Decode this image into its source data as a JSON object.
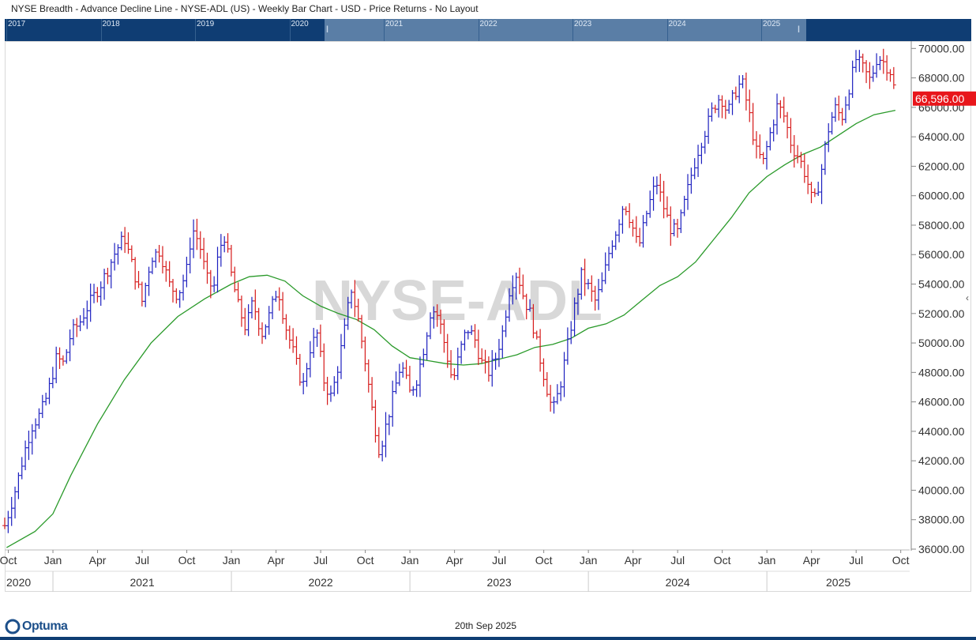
{
  "header": {
    "title": "NYSE Breadth - Advance Decline Line - NYSE-ADL (US) - Weekly Bar Chart - USD - Price Returns - No Layout"
  },
  "navigator": {
    "years": [
      "2017",
      "2018",
      "2019",
      "2020",
      "2021",
      "2022",
      "2023",
      "2024",
      "2025"
    ]
  },
  "watermark": "NYSE-ADL",
  "footer": {
    "date": "20th Sep 2025",
    "logo": "Optuma"
  },
  "colors": {
    "up": "#1c1fbf",
    "down": "#d61a1a",
    "ma": "#2a9a2a",
    "price_label": "#e8161b",
    "navigator": "#0f3d73"
  },
  "icons": {
    "collapse": "chevron-left-icon",
    "logo": "optuma-logo-icon"
  },
  "chart_data": {
    "type": "bar",
    "bar_style": "weekly OHLC bars",
    "ylim": [
      36000,
      70500
    ],
    "y_ticks": [
      36000,
      38000,
      40000,
      42000,
      44000,
      46000,
      48000,
      50000,
      52000,
      54000,
      56000,
      58000,
      60000,
      62000,
      64000,
      66000,
      68000,
      70000
    ],
    "y_tick_labels": [
      "36000.00",
      "38000.00",
      "40000.00",
      "42000.00",
      "44000.00",
      "46000.00",
      "48000.00",
      "50000.00",
      "52000.00",
      "54000.00",
      "56000.00",
      "58000.00",
      "60000.00",
      "62000.00",
      "64000.00",
      "66000.00",
      "68000.00",
      "70000.00"
    ],
    "last_price_label": "66,596.00",
    "last_price": 66596,
    "x_months": [
      {
        "label": "Oct",
        "t": 2020.75
      },
      {
        "label": "Jan",
        "t": 2021.0
      },
      {
        "label": "Apr",
        "t": 2021.25
      },
      {
        "label": "Jul",
        "t": 2021.5
      },
      {
        "label": "Oct",
        "t": 2021.75
      },
      {
        "label": "Jan",
        "t": 2022.0
      },
      {
        "label": "Apr",
        "t": 2022.25
      },
      {
        "label": "Jul",
        "t": 2022.5
      },
      {
        "label": "Oct",
        "t": 2022.75
      },
      {
        "label": "Jan",
        "t": 2023.0
      },
      {
        "label": "Apr",
        "t": 2023.25
      },
      {
        "label": "Jul",
        "t": 2023.5
      },
      {
        "label": "Oct",
        "t": 2023.75
      },
      {
        "label": "Jan",
        "t": 2024.0
      },
      {
        "label": "Apr",
        "t": 2024.25
      },
      {
        "label": "Jul",
        "t": 2024.5
      },
      {
        "label": "Oct",
        "t": 2024.75
      },
      {
        "label": "Jan",
        "t": 2025.0
      },
      {
        "label": "Apr",
        "t": 2025.25
      },
      {
        "label": "Jul",
        "t": 2025.5
      },
      {
        "label": "Oct",
        "t": 2025.75
      }
    ],
    "x_years": [
      "2020",
      "2021",
      "2022",
      "2023",
      "2024",
      "2025"
    ],
    "series": [
      {
        "name": "NYSE-ADL",
        "kind": "ohlc",
        "points": [
          {
            "t": 2020.73,
            "v": 37600
          },
          {
            "t": 2020.76,
            "v": 38800
          },
          {
            "t": 2020.8,
            "v": 40500
          },
          {
            "t": 2020.84,
            "v": 42600
          },
          {
            "t": 2020.88,
            "v": 44300
          },
          {
            "t": 2020.93,
            "v": 45200
          },
          {
            "t": 2020.97,
            "v": 46500
          },
          {
            "t": 2021.02,
            "v": 49000
          },
          {
            "t": 2021.06,
            "v": 48600
          },
          {
            "t": 2021.1,
            "v": 50600
          },
          {
            "t": 2021.15,
            "v": 51400
          },
          {
            "t": 2021.2,
            "v": 52600
          },
          {
            "t": 2021.26,
            "v": 53800
          },
          {
            "t": 2021.3,
            "v": 54800
          },
          {
            "t": 2021.35,
            "v": 56200
          },
          {
            "t": 2021.4,
            "v": 57200
          },
          {
            "t": 2021.45,
            "v": 55000
          },
          {
            "t": 2021.5,
            "v": 52800
          },
          {
            "t": 2021.55,
            "v": 55800
          },
          {
            "t": 2021.6,
            "v": 56300
          },
          {
            "t": 2021.65,
            "v": 54000
          },
          {
            "t": 2021.7,
            "v": 53200
          },
          {
            "t": 2021.75,
            "v": 55000
          },
          {
            "t": 2021.78,
            "v": 57800
          },
          {
            "t": 2021.82,
            "v": 56800
          },
          {
            "t": 2021.86,
            "v": 54400
          },
          {
            "t": 2021.9,
            "v": 53600
          },
          {
            "t": 2021.93,
            "v": 56300
          },
          {
            "t": 2021.96,
            "v": 57300
          },
          {
            "t": 2022.0,
            "v": 54600
          },
          {
            "t": 2022.04,
            "v": 52400
          },
          {
            "t": 2022.08,
            "v": 51000
          },
          {
            "t": 2022.12,
            "v": 52800
          },
          {
            "t": 2022.17,
            "v": 50600
          },
          {
            "t": 2022.21,
            "v": 51800
          },
          {
            "t": 2022.26,
            "v": 53800
          },
          {
            "t": 2022.3,
            "v": 51300
          },
          {
            "t": 2022.35,
            "v": 49200
          },
          {
            "t": 2022.4,
            "v": 47000
          },
          {
            "t": 2022.44,
            "v": 49600
          },
          {
            "t": 2022.48,
            "v": 50600
          },
          {
            "t": 2022.52,
            "v": 47300
          },
          {
            "t": 2022.56,
            "v": 46300
          },
          {
            "t": 2022.6,
            "v": 48600
          },
          {
            "t": 2022.64,
            "v": 51300
          },
          {
            "t": 2022.67,
            "v": 53800
          },
          {
            "t": 2022.71,
            "v": 51600
          },
          {
            "t": 2022.75,
            "v": 48700
          },
          {
            "t": 2022.79,
            "v": 45300
          },
          {
            "t": 2022.83,
            "v": 42600
          },
          {
            "t": 2022.87,
            "v": 44600
          },
          {
            "t": 2022.91,
            "v": 46600
          },
          {
            "t": 2022.95,
            "v": 48600
          },
          {
            "t": 2023.0,
            "v": 46600
          },
          {
            "t": 2023.04,
            "v": 47600
          },
          {
            "t": 2023.08,
            "v": 49800
          },
          {
            "t": 2023.12,
            "v": 52400
          },
          {
            "t": 2023.16,
            "v": 51800
          },
          {
            "t": 2023.2,
            "v": 49600
          },
          {
            "t": 2023.24,
            "v": 47300
          },
          {
            "t": 2023.28,
            "v": 49400
          },
          {
            "t": 2023.32,
            "v": 51000
          },
          {
            "t": 2023.36,
            "v": 50400
          },
          {
            "t": 2023.4,
            "v": 48700
          },
          {
            "t": 2023.44,
            "v": 48000
          },
          {
            "t": 2023.48,
            "v": 49000
          },
          {
            "t": 2023.52,
            "v": 50800
          },
          {
            "t": 2023.56,
            "v": 53800
          },
          {
            "t": 2023.6,
            "v": 54800
          },
          {
            "t": 2023.64,
            "v": 53000
          },
          {
            "t": 2023.68,
            "v": 51800
          },
          {
            "t": 2023.72,
            "v": 49400
          },
          {
            "t": 2023.76,
            "v": 47300
          },
          {
            "t": 2023.8,
            "v": 45300
          },
          {
            "t": 2023.84,
            "v": 47000
          },
          {
            "t": 2023.88,
            "v": 49600
          },
          {
            "t": 2023.92,
            "v": 52300
          },
          {
            "t": 2023.96,
            "v": 54600
          },
          {
            "t": 2024.0,
            "v": 53800
          },
          {
            "t": 2024.04,
            "v": 52800
          },
          {
            "t": 2024.08,
            "v": 54200
          },
          {
            "t": 2024.12,
            "v": 56400
          },
          {
            "t": 2024.16,
            "v": 57800
          },
          {
            "t": 2024.2,
            "v": 59600
          },
          {
            "t": 2024.24,
            "v": 58200
          },
          {
            "t": 2024.28,
            "v": 56400
          },
          {
            "t": 2024.33,
            "v": 59000
          },
          {
            "t": 2024.38,
            "v": 61000
          },
          {
            "t": 2024.42,
            "v": 59300
          },
          {
            "t": 2024.46,
            "v": 57800
          },
          {
            "t": 2024.5,
            "v": 57500
          },
          {
            "t": 2024.54,
            "v": 59600
          },
          {
            "t": 2024.58,
            "v": 61600
          },
          {
            "t": 2024.62,
            "v": 63300
          },
          {
            "t": 2024.66,
            "v": 64600
          },
          {
            "t": 2024.7,
            "v": 66000
          },
          {
            "t": 2024.74,
            "v": 66800
          },
          {
            "t": 2024.78,
            "v": 65600
          },
          {
            "t": 2024.82,
            "v": 67000
          },
          {
            "t": 2024.86,
            "v": 67800
          },
          {
            "t": 2024.9,
            "v": 65600
          },
          {
            "t": 2024.94,
            "v": 63000
          },
          {
            "t": 2024.98,
            "v": 62300
          },
          {
            "t": 2025.02,
            "v": 64300
          },
          {
            "t": 2025.06,
            "v": 66200
          },
          {
            "t": 2025.1,
            "v": 65300
          },
          {
            "t": 2025.14,
            "v": 63300
          },
          {
            "t": 2025.18,
            "v": 62600
          },
          {
            "t": 2025.22,
            "v": 61300
          },
          {
            "t": 2025.26,
            "v": 59300
          },
          {
            "t": 2025.3,
            "v": 61300
          },
          {
            "t": 2025.34,
            "v": 64300
          },
          {
            "t": 2025.38,
            "v": 66000
          },
          {
            "t": 2025.42,
            "v": 65300
          },
          {
            "t": 2025.46,
            "v": 67300
          },
          {
            "t": 2025.5,
            "v": 69300
          },
          {
            "t": 2025.54,
            "v": 68600
          },
          {
            "t": 2025.58,
            "v": 67800
          },
          {
            "t": 2025.62,
            "v": 69500
          },
          {
            "t": 2025.66,
            "v": 69000
          },
          {
            "t": 2025.7,
            "v": 68300
          },
          {
            "t": 2025.72,
            "v": 66600
          }
        ]
      },
      {
        "name": "Moving Average",
        "kind": "line",
        "points": [
          {
            "t": 2020.74,
            "v": 36100
          },
          {
            "t": 2020.9,
            "v": 37200
          },
          {
            "t": 2021.0,
            "v": 38400
          },
          {
            "t": 2021.1,
            "v": 41000
          },
          {
            "t": 2021.25,
            "v": 44500
          },
          {
            "t": 2021.4,
            "v": 47500
          },
          {
            "t": 2021.55,
            "v": 50000
          },
          {
            "t": 2021.7,
            "v": 51800
          },
          {
            "t": 2021.85,
            "v": 53000
          },
          {
            "t": 2022.0,
            "v": 54000
          },
          {
            "t": 2022.1,
            "v": 54500
          },
          {
            "t": 2022.2,
            "v": 54600
          },
          {
            "t": 2022.3,
            "v": 54200
          },
          {
            "t": 2022.4,
            "v": 53200
          },
          {
            "t": 2022.5,
            "v": 52500
          },
          {
            "t": 2022.6,
            "v": 52000
          },
          {
            "t": 2022.7,
            "v": 51600
          },
          {
            "t": 2022.8,
            "v": 50900
          },
          {
            "t": 2022.9,
            "v": 49800
          },
          {
            "t": 2023.0,
            "v": 49000
          },
          {
            "t": 2023.1,
            "v": 48800
          },
          {
            "t": 2023.2,
            "v": 48600
          },
          {
            "t": 2023.3,
            "v": 48500
          },
          {
            "t": 2023.4,
            "v": 48600
          },
          {
            "t": 2023.5,
            "v": 48900
          },
          {
            "t": 2023.6,
            "v": 49200
          },
          {
            "t": 2023.7,
            "v": 49700
          },
          {
            "t": 2023.8,
            "v": 49900
          },
          {
            "t": 2023.9,
            "v": 50300
          },
          {
            "t": 2024.0,
            "v": 51000
          },
          {
            "t": 2024.1,
            "v": 51300
          },
          {
            "t": 2024.2,
            "v": 51900
          },
          {
            "t": 2024.3,
            "v": 52900
          },
          {
            "t": 2024.4,
            "v": 53900
          },
          {
            "t": 2024.5,
            "v": 54500
          },
          {
            "t": 2024.6,
            "v": 55500
          },
          {
            "t": 2024.7,
            "v": 57000
          },
          {
            "t": 2024.8,
            "v": 58500
          },
          {
            "t": 2024.9,
            "v": 60200
          },
          {
            "t": 2025.0,
            "v": 61300
          },
          {
            "t": 2025.1,
            "v": 62100
          },
          {
            "t": 2025.2,
            "v": 62800
          },
          {
            "t": 2025.3,
            "v": 63300
          },
          {
            "t": 2025.4,
            "v": 64100
          },
          {
            "t": 2025.5,
            "v": 64900
          },
          {
            "t": 2025.6,
            "v": 65500
          },
          {
            "t": 2025.72,
            "v": 65800
          }
        ]
      }
    ]
  }
}
